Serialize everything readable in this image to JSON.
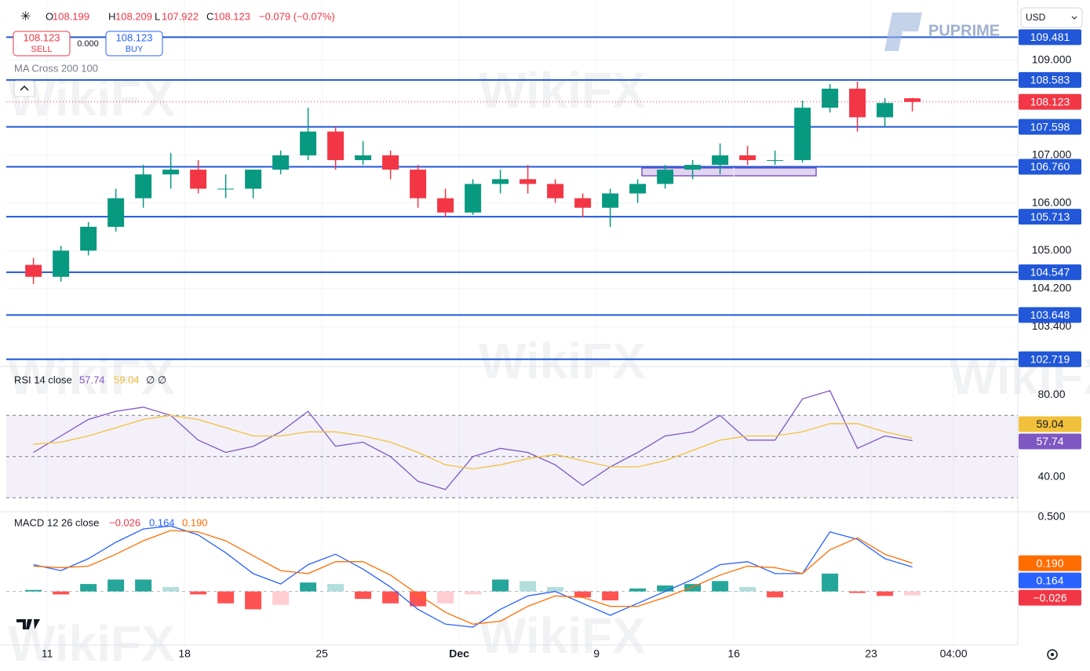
{
  "ui": {
    "ohlc_letters": [
      "O",
      "H",
      "L",
      "C"
    ],
    "change": "−0.079 (−0.07%)",
    "sell": {
      "price": "108.123",
      "label": "SELL"
    },
    "spread": "0.000",
    "buy": {
      "price": "108.123",
      "label": "BUY"
    },
    "indicator": "MA Cross 200 100",
    "currency": "USD",
    "brand": "PUPRIME",
    "watermark": "WikiFX"
  },
  "chart_data": [
    {
      "type": "candlestick",
      "categories": [
        null,
        null,
        null,
        null,
        null,
        null,
        null,
        null,
        null,
        null,
        null,
        null,
        null,
        null,
        null,
        null,
        null,
        null,
        null,
        null,
        null,
        null,
        null,
        null,
        null,
        null,
        null,
        null,
        null,
        null,
        null,
        null,
        null
      ],
      "open": [
        104.7,
        104.45,
        105.0,
        105.5,
        106.1,
        106.6,
        106.7,
        106.3,
        106.3,
        106.7,
        107.0,
        107.5,
        106.9,
        107.0,
        106.7,
        106.1,
        105.8,
        106.4,
        106.5,
        106.4,
        106.1,
        105.9,
        106.2,
        106.4,
        106.7,
        106.8,
        107.0,
        106.9,
        106.9,
        108.0,
        108.4,
        107.8,
        108.199
      ],
      "high": [
        104.85,
        105.1,
        105.6,
        106.3,
        106.8,
        107.05,
        106.9,
        106.6,
        106.7,
        107.1,
        108.0,
        107.6,
        107.3,
        107.1,
        106.8,
        106.3,
        106.5,
        106.7,
        106.8,
        106.5,
        106.2,
        106.3,
        106.5,
        106.8,
        106.9,
        107.25,
        107.2,
        107.1,
        108.15,
        108.5,
        108.55,
        108.2,
        108.209
      ],
      "low": [
        104.3,
        104.35,
        104.9,
        105.4,
        105.9,
        106.3,
        106.2,
        106.1,
        106.1,
        106.6,
        106.9,
        106.7,
        106.8,
        106.5,
        105.9,
        105.7,
        105.75,
        106.2,
        106.2,
        106.0,
        105.7,
        105.5,
        106.0,
        106.3,
        106.5,
        106.6,
        106.8,
        106.8,
        106.85,
        107.9,
        107.5,
        107.6,
        107.922
      ],
      "close": [
        104.45,
        105.0,
        105.5,
        106.1,
        106.6,
        106.7,
        106.3,
        106.3,
        106.7,
        107.0,
        107.5,
        106.9,
        107.0,
        106.7,
        106.1,
        105.8,
        106.4,
        106.5,
        106.4,
        106.1,
        105.9,
        106.2,
        106.4,
        106.7,
        106.8,
        107.0,
        106.9,
        106.9,
        108.0,
        108.4,
        107.8,
        108.1,
        108.123
      ],
      "up_color": "#089981",
      "down_color": "#f23645",
      "xlim": [
        -0.99,
        35.84
      ],
      "xticks": [
        {
          "value": 0.5,
          "label": "11"
        },
        {
          "value": 5.5,
          "label": "18"
        },
        {
          "value": 10.5,
          "label": "25"
        },
        {
          "value": 15.5,
          "label": "Dec"
        },
        {
          "value": 20.5,
          "label": "9"
        },
        {
          "value": 25.5,
          "label": "16"
        },
        {
          "value": 30.5,
          "label": "23"
        },
        {
          "value": 33.5,
          "label": "04:00"
        }
      ],
      "ylim": [
        102.6,
        110.13
      ],
      "yticks": [
        {
          "value": 109,
          "label": "109.000"
        },
        {
          "value": 107,
          "label": "107.000"
        },
        {
          "value": 106,
          "label": "106.000"
        },
        {
          "value": 105,
          "label": "105.000"
        },
        {
          "value": 104.2,
          "label": "104.200"
        },
        {
          "value": 103.4,
          "label": "103.400"
        }
      ],
      "levels": [
        {
          "value": 109.481,
          "label": "109.481"
        },
        {
          "value": 108.583,
          "label": "108.583"
        },
        {
          "value": 107.598,
          "label": "107.598"
        },
        {
          "value": 106.76,
          "label": "106.760"
        },
        {
          "value": 105.713,
          "label": "105.713"
        },
        {
          "value": 104.547,
          "label": "104.547"
        },
        {
          "value": 103.648,
          "label": "103.648"
        },
        {
          "value": 102.719,
          "label": "102.719"
        }
      ],
      "level_color": "#2157d8",
      "grid": true
    },
    {
      "type": "line",
      "title": "RSI 14 close",
      "legend_extra": "∅ ∅",
      "series": [
        {
          "color": "#7e57c2",
          "values": [
            52,
            60,
            68,
            72,
            74,
            70,
            58,
            52,
            55,
            62,
            72,
            55,
            57,
            50,
            38,
            34,
            50,
            54,
            52,
            46,
            36,
            45,
            52,
            60,
            62,
            70,
            58,
            58,
            78,
            82,
            54,
            60,
            57.74
          ]
        },
        {
          "color": "#f2c13b",
          "values": [
            56,
            57,
            60,
            64,
            68,
            70,
            68,
            64,
            60,
            60,
            62,
            62,
            60,
            57,
            52,
            46,
            44,
            46,
            49,
            51,
            48,
            45,
            45,
            48,
            53,
            58,
            60,
            60,
            62,
            66,
            66,
            62,
            59.04
          ]
        }
      ],
      "xlim": [
        -0.99,
        35.84
      ],
      "ylim": [
        24,
        92.6
      ],
      "yticks": [
        {
          "value": 80,
          "label": "80.00"
        },
        {
          "value": 40,
          "label": "40.00"
        }
      ],
      "levels": [
        70,
        50,
        30
      ],
      "band_color": "#7e57c2"
    },
    {
      "type": "macd",
      "title": "MACD 12 26 close",
      "series": [
        {
          "type": "histogram",
          "colors": [
            "#26a69a",
            "#b2dfdb",
            "#ff5252",
            "#ffcdd2"
          ],
          "values": [
            0.01,
            -0.02,
            0.05,
            0.08,
            0.08,
            0.03,
            -0.02,
            -0.08,
            -0.12,
            -0.09,
            0.06,
            0.05,
            -0.05,
            -0.08,
            -0.1,
            -0.08,
            -0.02,
            0.08,
            0.07,
            0.03,
            -0.04,
            -0.06,
            0.02,
            0.04,
            0.05,
            0.07,
            0.03,
            -0.04,
            0,
            0.12,
            -0.01,
            -0.03,
            -0.026
          ],
          "value_label": "−0.026",
          "label_color": "#f23645"
        },
        {
          "type": "line",
          "color": "#2962ff",
          "values": [
            0.18,
            0.14,
            0.22,
            0.33,
            0.42,
            0.44,
            0.38,
            0.26,
            0.12,
            0.05,
            0.18,
            0.25,
            0.15,
            0.03,
            -0.12,
            -0.22,
            -0.24,
            -0.12,
            -0.03,
            0.0,
            -0.08,
            -0.16,
            -0.08,
            0.0,
            0.08,
            0.18,
            0.2,
            0.12,
            0.12,
            0.4,
            0.35,
            0.22,
            0.164
          ],
          "value_label": "0.164"
        },
        {
          "type": "line",
          "color": "#ff6d00",
          "values": [
            0.17,
            0.16,
            0.17,
            0.25,
            0.34,
            0.41,
            0.4,
            0.34,
            0.24,
            0.14,
            0.12,
            0.2,
            0.2,
            0.11,
            -0.02,
            -0.14,
            -0.22,
            -0.2,
            -0.1,
            -0.03,
            -0.04,
            -0.1,
            -0.1,
            -0.04,
            0.03,
            0.11,
            0.17,
            0.16,
            0.12,
            0.28,
            0.36,
            0.25,
            0.19
          ],
          "value_label": "0.190"
        }
      ],
      "xlim": [
        -0.99,
        35.84
      ],
      "ylim": [
        -0.35,
        0.52
      ],
      "yticks": [
        {
          "value": 0.5,
          "label": "0.500"
        }
      ]
    }
  ]
}
